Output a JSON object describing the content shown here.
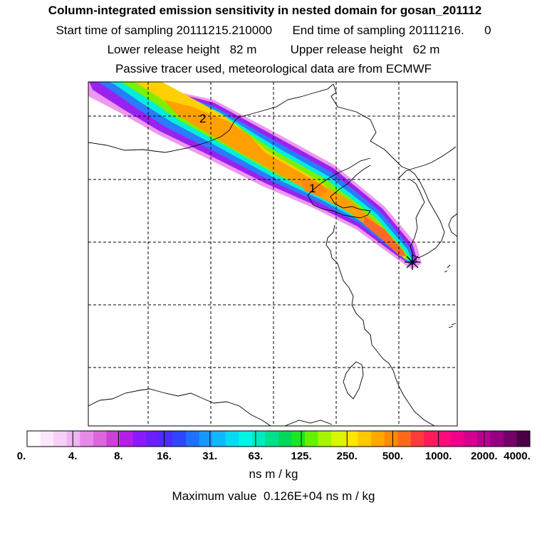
{
  "header": {
    "title": "Column-integrated emission sensitivity in nested domain for gosan_201112",
    "line2": "Start time of sampling 20111215.210000      End time of sampling 20111216.      0",
    "line3": "Lower release height   82 m          Upper release height   62 m",
    "line4": "Passive tracer used, meteorological data are from ECMWF"
  },
  "map": {
    "plume_labels": [
      "2",
      "1"
    ],
    "receptor": "x-star-marker"
  },
  "colorbar": {
    "ticks": [
      "0.",
      "4.",
      "8.",
      "16.",
      "31.",
      "63.",
      "125.",
      "250.",
      "500.",
      "1000.",
      "2000.",
      "4000."
    ],
    "colors": [
      "#ffffff",
      "#fbe8fb",
      "#f6d0f6",
      "#f0b4f0",
      "#e88ae8",
      "#dd66dd",
      "#cc3fd9",
      "#b31fe6",
      "#8c1aff",
      "#6a1fff",
      "#4a2cff",
      "#2e46ff",
      "#2070ff",
      "#1a96ff",
      "#12b8ff",
      "#08daf4",
      "#00f5e6",
      "#00e8c0",
      "#00e08c",
      "#00d85a",
      "#1ee61e",
      "#66f000",
      "#a6f500",
      "#d6f800",
      "#ffe600",
      "#ffc800",
      "#ffa800",
      "#ff8a00",
      "#ff6a1a",
      "#ff3a3a",
      "#ff1a5a",
      "#ff0a7a",
      "#f0008c",
      "#d60090",
      "#b80090",
      "#960080",
      "#74006a",
      "#4a0046"
    ],
    "units": "ns m / kg",
    "max_text": "Maximum value  0.126E+04 ns m / kg"
  }
}
